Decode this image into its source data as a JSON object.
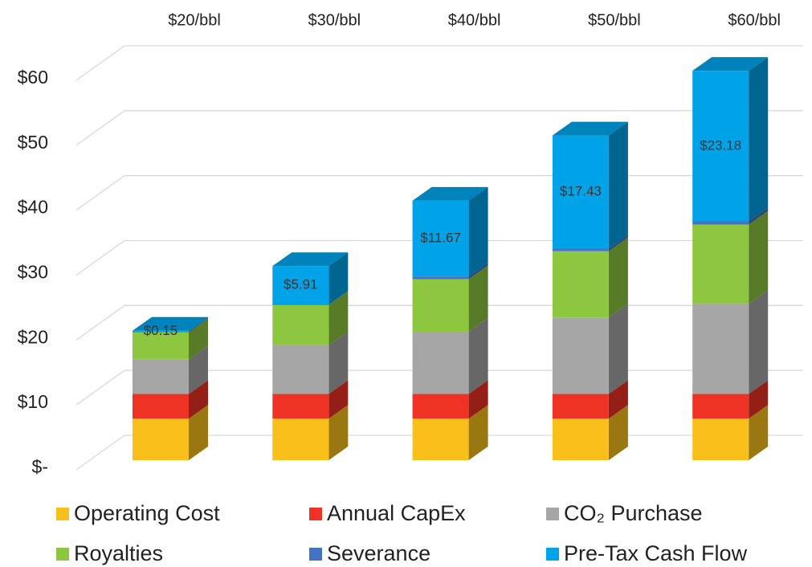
{
  "chart_data": {
    "type": "bar3d_stacked",
    "categories": [
      "$20/bbl",
      "$30/bbl",
      "$40/bbl",
      "$50/bbl",
      "$60/bbl"
    ],
    "series": [
      {
        "name": "Operating Cost",
        "color": "#f9c01c",
        "values": [
          6.4,
          6.4,
          6.4,
          6.4,
          6.4
        ]
      },
      {
        "name": "Annual CapEx",
        "color": "#ee3224",
        "values": [
          3.8,
          3.8,
          3.8,
          3.8,
          3.8
        ]
      },
      {
        "name": "CO₂ Purchase",
        "color": "#a6a6a6",
        "values": [
          5.3,
          7.5,
          9.6,
          11.8,
          13.9
        ]
      },
      {
        "name": "Royalties",
        "color": "#8dc63f",
        "values": [
          4.2,
          6.2,
          8.1,
          10.2,
          12.2
        ]
      },
      {
        "name": "Severance",
        "color": "#4472c4",
        "values": [
          0.1,
          0.1,
          0.4,
          0.4,
          0.5
        ]
      },
      {
        "name": "Pre-Tax Cash Flow",
        "color": "#00a3e8",
        "values": [
          0.15,
          5.91,
          11.67,
          17.43,
          23.18
        ],
        "value_labels": [
          "$0.15",
          "$5.91",
          "$11.67",
          "$17.43",
          "$23.18"
        ]
      }
    ],
    "ylim": [
      0,
      60
    ],
    "yticks": [
      {
        "value": 0,
        "label": "$-"
      },
      {
        "value": 10,
        "label": "$10"
      },
      {
        "value": 20,
        "label": "$20"
      },
      {
        "value": 30,
        "label": "$30"
      },
      {
        "value": 40,
        "label": "$40"
      },
      {
        "value": 50,
        "label": "$50"
      },
      {
        "value": 60,
        "label": "$60"
      }
    ],
    "grid": true,
    "stacked": true
  }
}
